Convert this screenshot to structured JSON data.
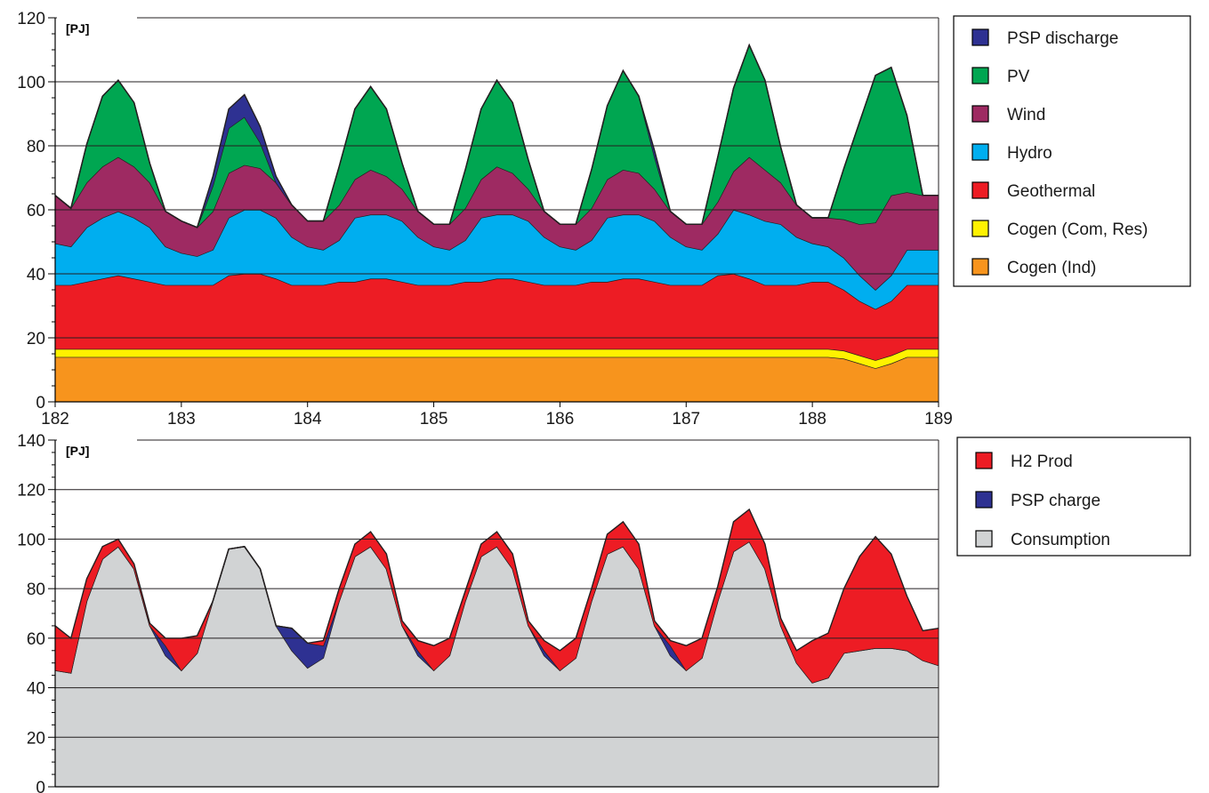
{
  "colors": {
    "psp_discharge": "#2e3192",
    "pv": "#00a651",
    "wind": "#9e2a62",
    "hydro": "#00aeef",
    "geothermal": "#ed1c24",
    "cogen_com_res": "#fff200",
    "cogen_ind": "#f7941d",
    "h2_prod": "#ed1c24",
    "psp_charge": "#2e3192",
    "consumption": "#d1d3d4",
    "outline": "#231f20",
    "grid": "#231f20"
  },
  "chart_data": [
    {
      "type": "area",
      "stacked": true,
      "unit_label": "[PJ]",
      "xlabel": "",
      "ylabel": "",
      "xlim": [
        182,
        189
      ],
      "ylim": [
        0,
        120
      ],
      "x_ticks": [
        182,
        183,
        184,
        185,
        186,
        187,
        188,
        189
      ],
      "y_ticks": [
        0,
        20,
        40,
        60,
        80,
        100,
        120
      ],
      "grid": "horizontal",
      "legend_position": "right",
      "x": [
        182.0,
        182.125,
        182.25,
        182.375,
        182.5,
        182.625,
        182.75,
        182.875,
        183.0,
        183.125,
        183.25,
        183.375,
        183.5,
        183.625,
        183.75,
        183.875,
        184.0,
        184.125,
        184.25,
        184.375,
        184.5,
        184.625,
        184.75,
        184.875,
        185.0,
        185.125,
        185.25,
        185.375,
        185.5,
        185.625,
        185.75,
        185.875,
        186.0,
        186.125,
        186.25,
        186.375,
        186.5,
        186.625,
        186.75,
        186.875,
        187.0,
        187.125,
        187.25,
        187.375,
        187.5,
        187.625,
        187.75,
        187.875,
        188.0,
        188.125,
        188.25,
        188.375,
        188.5,
        188.625,
        188.75,
        188.875,
        189.0
      ],
      "series": [
        {
          "name": "Cogen (Ind)",
          "color_key": "cogen_ind",
          "values": [
            14,
            14,
            14,
            14,
            14,
            14,
            14,
            14,
            14,
            14,
            14,
            14,
            14,
            14,
            14,
            14,
            14,
            14,
            14,
            14,
            14,
            14,
            14,
            14,
            14,
            14,
            14,
            14,
            14,
            14,
            14,
            14,
            14,
            14,
            14,
            14,
            14,
            14,
            14,
            14,
            14,
            14,
            14,
            14,
            14,
            14,
            14,
            14,
            14,
            14,
            13.5,
            12,
            10.5,
            12,
            14,
            14,
            14
          ]
        },
        {
          "name": "Cogen (Com, Res)",
          "color_key": "cogen_com_res",
          "values": [
            2.5,
            2.5,
            2.5,
            2.5,
            2.5,
            2.5,
            2.5,
            2.5,
            2.5,
            2.5,
            2.5,
            2.5,
            2.5,
            2.5,
            2.5,
            2.5,
            2.5,
            2.5,
            2.5,
            2.5,
            2.5,
            2.5,
            2.5,
            2.5,
            2.5,
            2.5,
            2.5,
            2.5,
            2.5,
            2.5,
            2.5,
            2.5,
            2.5,
            2.5,
            2.5,
            2.5,
            2.5,
            2.5,
            2.5,
            2.5,
            2.5,
            2.5,
            2.5,
            2.5,
            2.5,
            2.5,
            2.5,
            2.5,
            2.5,
            2.5,
            2.5,
            2.5,
            2.5,
            2.5,
            2.5,
            2.5,
            2.5
          ]
        },
        {
          "name": "Geothermal",
          "color_key": "geothermal",
          "values": [
            20,
            20,
            21,
            22,
            23,
            22,
            21,
            20,
            20,
            20,
            20,
            23,
            23.5,
            23.5,
            22,
            20,
            20,
            20,
            21,
            21,
            22,
            22,
            21,
            20,
            20,
            20,
            21,
            21,
            22,
            22,
            21,
            20,
            20,
            20,
            21,
            21,
            22,
            22,
            21,
            20,
            20,
            20,
            23,
            23.5,
            22,
            20,
            20,
            20,
            21,
            21,
            19,
            17,
            16,
            17,
            20,
            20,
            20
          ]
        },
        {
          "name": "Hydro",
          "color_key": "hydro",
          "values": [
            13,
            12,
            17,
            19,
            20,
            19,
            17,
            12,
            10,
            9,
            11,
            18,
            20,
            20,
            19,
            15,
            12,
            11,
            13,
            20,
            20,
            20,
            19,
            15,
            12,
            11,
            13,
            20,
            20,
            20,
            19,
            15,
            12,
            11,
            13,
            20,
            20,
            20,
            19,
            15,
            12,
            11,
            13,
            20,
            20,
            20,
            19,
            15,
            12,
            11,
            10,
            8,
            6,
            8,
            11,
            11,
            11
          ]
        },
        {
          "name": "Wind",
          "color_key": "wind",
          "values": [
            15,
            12,
            14,
            16,
            17,
            16,
            14,
            11,
            10,
            9,
            12,
            14,
            14,
            13,
            11,
            10,
            8,
            9,
            11,
            12,
            14,
            12,
            10,
            8,
            7,
            8,
            10,
            12,
            15,
            13,
            10,
            8,
            7,
            8,
            10,
            12,
            14,
            13,
            10,
            8,
            7,
            8,
            10,
            12,
            18,
            16,
            13,
            10,
            8,
            9,
            12,
            16,
            21,
            25,
            18,
            17,
            17
          ]
        },
        {
          "name": "PV",
          "color_key": "pv",
          "values": [
            0,
            0,
            12,
            22,
            24,
            20,
            6,
            0,
            0,
            0,
            8,
            14,
            15,
            8,
            0,
            0,
            0,
            0,
            12,
            22,
            26,
            21,
            8,
            0,
            0,
            0,
            12,
            22,
            27,
            22,
            9,
            0,
            0,
            0,
            12,
            23,
            31,
            24,
            10,
            0,
            0,
            0,
            14,
            26,
            35,
            28,
            11,
            0,
            0,
            0,
            16,
            32,
            46,
            40,
            24,
            0,
            0
          ]
        },
        {
          "name": "PSP discharge",
          "color_key": "psp_discharge",
          "values": [
            0,
            0,
            0,
            0,
            0,
            0,
            0,
            0,
            0,
            0,
            3,
            6,
            7,
            5,
            2,
            0,
            0,
            0,
            0,
            0,
            0,
            0,
            0,
            0,
            0,
            0,
            0,
            0,
            0,
            0,
            0,
            0,
            0,
            0,
            0,
            0,
            0,
            0,
            2,
            0,
            0,
            0,
            0,
            0,
            0,
            0,
            0,
            0,
            0,
            0,
            0,
            0,
            0,
            0,
            0,
            0,
            0
          ]
        }
      ]
    },
    {
      "type": "area",
      "stacked": true,
      "unit_label": "[PJ]",
      "xlabel": "",
      "ylabel": "",
      "xlim": [
        182,
        189
      ],
      "ylim": [
        0,
        140
      ],
      "y_ticks": [
        0,
        20,
        40,
        60,
        80,
        100,
        120,
        140
      ],
      "grid": "horizontal",
      "legend_position": "right",
      "x": [
        182.0,
        182.125,
        182.25,
        182.375,
        182.5,
        182.625,
        182.75,
        182.875,
        183.0,
        183.125,
        183.25,
        183.375,
        183.5,
        183.625,
        183.75,
        183.875,
        184.0,
        184.125,
        184.25,
        184.375,
        184.5,
        184.625,
        184.75,
        184.875,
        185.0,
        185.125,
        185.25,
        185.375,
        185.5,
        185.625,
        185.75,
        185.875,
        186.0,
        186.125,
        186.25,
        186.375,
        186.5,
        186.625,
        186.75,
        186.875,
        187.0,
        187.125,
        187.25,
        187.375,
        187.5,
        187.625,
        187.75,
        187.875,
        188.0,
        188.125,
        188.25,
        188.375,
        188.5,
        188.625,
        188.75,
        188.875,
        189.0
      ],
      "series": [
        {
          "name": "Consumption",
          "color_key": "consumption",
          "values": [
            47,
            46,
            75,
            92,
            97,
            88,
            65,
            53,
            47,
            54,
            75,
            96,
            97,
            88,
            65,
            55,
            48,
            52,
            75,
            93,
            97,
            88,
            65,
            53,
            47,
            53,
            75,
            93,
            97,
            88,
            65,
            53,
            47,
            52,
            75,
            94,
            97,
            88,
            65,
            53,
            47,
            52,
            75,
            95,
            99,
            88,
            65,
            50,
            42,
            44,
            54,
            55,
            56,
            56,
            55,
            51,
            49
          ]
        },
        {
          "name": "PSP charge",
          "color_key": "psp_charge",
          "values": [
            0,
            0,
            0,
            0,
            0,
            0,
            0,
            4,
            0,
            0,
            0,
            0,
            0,
            0,
            0,
            9,
            10,
            5,
            0,
            0,
            0,
            0,
            0,
            2,
            0,
            0,
            0,
            0,
            0,
            0,
            0,
            2,
            0,
            0,
            0,
            0,
            0,
            0,
            0,
            4,
            0,
            0,
            0,
            0,
            0,
            0,
            0,
            0,
            0,
            0,
            0,
            0,
            0,
            0,
            0,
            0,
            0
          ]
        },
        {
          "name": "H2 Prod",
          "color_key": "h2_prod",
          "values": [
            18,
            14,
            9,
            5,
            3,
            2,
            1,
            3,
            13,
            7,
            0,
            0,
            0,
            0,
            0,
            0,
            0,
            2,
            5,
            5,
            6,
            6,
            2,
            4,
            10,
            7,
            4,
            5,
            6,
            6,
            2,
            4,
            8,
            8,
            5,
            8,
            10,
            10,
            2,
            2,
            10,
            8,
            6,
            12,
            13,
            10,
            3,
            5,
            17,
            18,
            26,
            38,
            45,
            38,
            22,
            12,
            15
          ]
        }
      ]
    }
  ],
  "legends": [
    {
      "items": [
        "PSP discharge",
        "PV",
        "Wind",
        "Hydro",
        "Geothermal",
        "Cogen (Com, Res)",
        "Cogen (Ind)"
      ],
      "color_keys": [
        "psp_discharge",
        "pv",
        "wind",
        "hydro",
        "geothermal",
        "cogen_com_res",
        "cogen_ind"
      ]
    },
    {
      "items": [
        "H2 Prod",
        "PSP charge",
        "Consumption"
      ],
      "color_keys": [
        "h2_prod",
        "psp_charge",
        "consumption"
      ]
    }
  ]
}
